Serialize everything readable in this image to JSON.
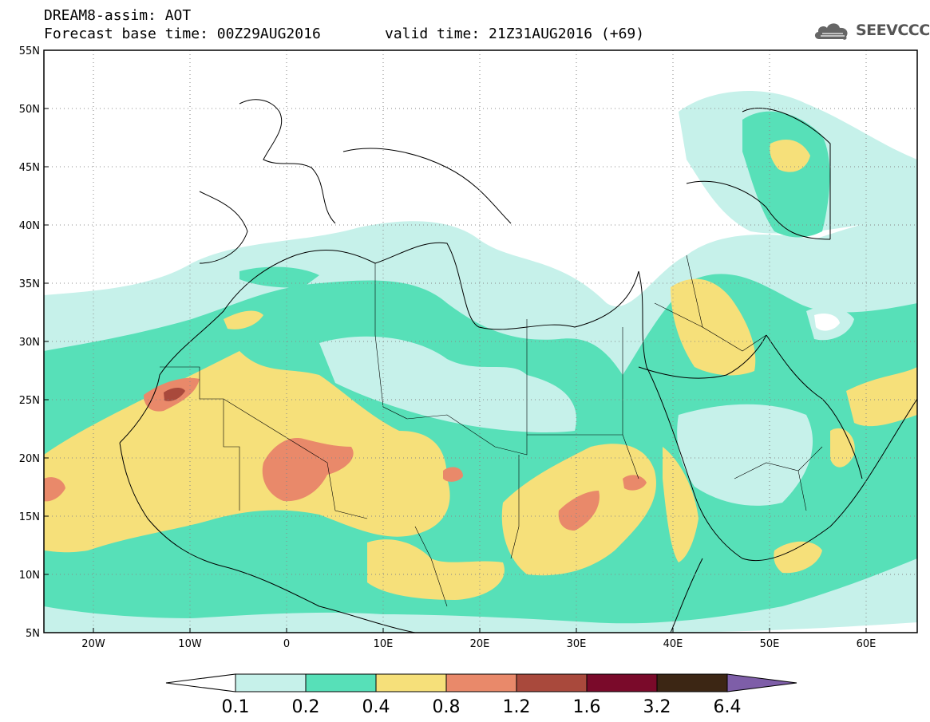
{
  "header": {
    "title": "DREAM8-assim: AOT",
    "base_time": "Forecast base time: 00Z29AUG2016",
    "valid_time": "valid time: 21Z31AUG2016 (+69)",
    "logo_text": "SEEVCCC",
    "logo_icon": "cloud-logo-icon"
  },
  "axes": {
    "lat_labels": [
      "55N",
      "50N",
      "45N",
      "40N",
      "35N",
      "30N",
      "25N",
      "20N",
      "15N",
      "10N",
      "5N"
    ],
    "lon_labels": [
      "20W",
      "10W",
      "0",
      "10E",
      "20E",
      "30E",
      "40E",
      "50E",
      "60E"
    ]
  },
  "colorbar": {
    "labels": [
      "0.1",
      "0.2",
      "0.4",
      "0.8",
      "1.2",
      "1.6",
      "3.2",
      "6.4"
    ],
    "colors": [
      "#ffffff",
      "#c6f1ea",
      "#57e0b8",
      "#f6e07a",
      "#e9896a",
      "#a9493c",
      "#7a0a2a",
      "#3c2614",
      "#7e5ea8"
    ]
  }
}
